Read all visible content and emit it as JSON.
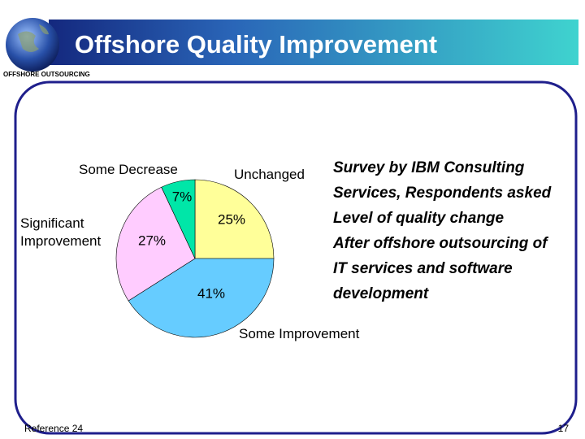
{
  "header": {
    "title": "Offshore Quality Improvement",
    "subtitle": "OFFSHORE OUTSOURCING"
  },
  "chart_data": {
    "type": "pie",
    "categories": [
      "Unchanged",
      "Some Improvement",
      "Significant Improvement",
      "Some Decrease"
    ],
    "values": [
      25,
      41,
      27,
      7
    ],
    "value_labels": [
      "25%",
      "41%",
      "27%",
      "7%"
    ],
    "colors": [
      "#ffff99",
      "#66ccff",
      "#ffccff",
      "#00e6a8"
    ]
  },
  "note": {
    "lines": [
      "Survey by IBM Consulting",
      "Services, Respondents asked",
      "Level of quality change",
      "After offshore outsourcing of",
      "IT services and software",
      "development"
    ]
  },
  "footer": {
    "reference": "Reference 24",
    "page": "17"
  }
}
